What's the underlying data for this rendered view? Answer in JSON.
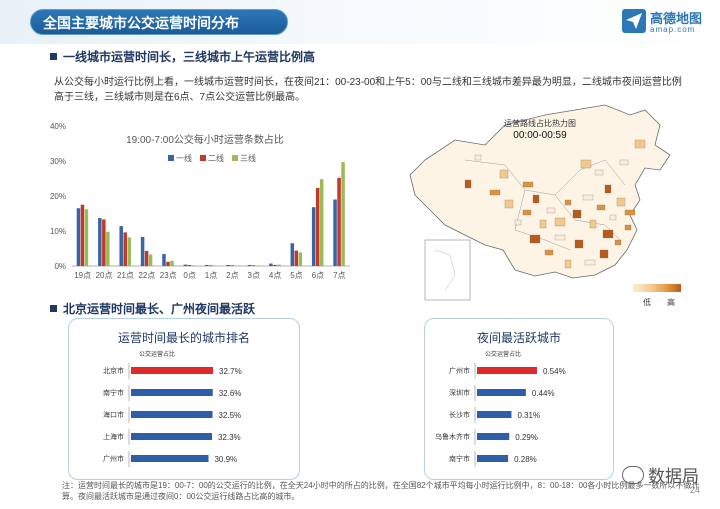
{
  "header": {
    "title": "全国主要城市公交运营时间分布",
    "logo_cn": "高德地图",
    "logo_en": "amap.com"
  },
  "section1": {
    "heading": "一线城市运营时间长，三线城市上午运营比例高",
    "paragraph": "从公交每小时运行比例上看，一线城市运营时间长，在夜间21：00-23-00和上午5：00与二线和三线城市差异最为明显，二线城市夜间运营比例高于三线，三线城市则是在6点、7点公交运营比例最高。"
  },
  "chart_data": [
    {
      "type": "bar",
      "title": "19:00-7:00公交每小时运营条数占比",
      "categories": [
        "19点",
        "20点",
        "21点",
        "22点",
        "23点",
        "0点",
        "1点",
        "2点",
        "3点",
        "4点",
        "5点",
        "6点",
        "7点"
      ],
      "series": [
        {
          "name": "一线",
          "color": "#3a64a6",
          "values": [
            16.5,
            13.7,
            11.4,
            8.3,
            3.4,
            0.4,
            0.3,
            0.3,
            0.3,
            0.7,
            6.5,
            16.8,
            19
          ]
        },
        {
          "name": "二线",
          "color": "#c0392b",
          "values": [
            17.5,
            13.3,
            9.6,
            4.3,
            1.2,
            0.3,
            0.2,
            0.2,
            0.2,
            0.3,
            4.4,
            22.3,
            25.2
          ]
        },
        {
          "name": "三线",
          "color": "#9bbb59",
          "values": [
            16.2,
            9.8,
            8.2,
            3.3,
            1.5,
            0.2,
            0.1,
            0.1,
            0.1,
            0.4,
            3.9,
            24.8,
            29.7
          ]
        }
      ],
      "yticks": [
        "0%",
        "10%",
        "20%",
        "30%",
        "40%"
      ],
      "ylim": [
        0,
        40
      ]
    },
    {
      "type": "bar",
      "title": "运营时间最长的城市排名",
      "value_header": "公交运营占比",
      "categories": [
        "北京市",
        "南宁市",
        "海口市",
        "上海市",
        "广州市"
      ],
      "values": [
        32.7,
        32.6,
        32.5,
        32.3,
        30.9
      ],
      "labels": [
        "32.7%",
        "32.6%",
        "32.5%",
        "32.3%",
        "30.9%"
      ],
      "highlight_color": "#e02a2a",
      "color": "#2e5ea8"
    },
    {
      "type": "bar",
      "title": "夜间最活跃城市",
      "value_header": "公交运营占比",
      "categories": [
        "广州市",
        "深圳市",
        "长沙市",
        "乌鲁木齐市",
        "南宁市"
      ],
      "values": [
        0.54,
        0.44,
        0.31,
        0.29,
        0.28
      ],
      "labels": [
        "0.54%",
        "0.44%",
        "0.31%",
        "0.29%",
        "0.28%"
      ],
      "highlight_color": "#e02a2a",
      "color": "#2e5ea8"
    }
  ],
  "map": {
    "title": "运营路线占比热力图",
    "subtitle": "00:00-00:59",
    "legend_low": "低",
    "legend_high": "高",
    "colors": [
      "#fbeed8",
      "#f3c98b",
      "#e0913c",
      "#b85a1a"
    ]
  },
  "section2": {
    "heading": "北京运营时间最长、广州夜间最活跃"
  },
  "note": "注：运营时间最长的城市是19：00-7：00的公交运行的比例，在全天24小时中的所占的比例，在全国82个城市平均每小时运行比例中，8：00-18：00各小时比例最多一数所以不做计算。夜间最活跃城市是通过夜间0：00公交运行线路占比高的城市。",
  "watermark": "数据局",
  "page_number": "24"
}
